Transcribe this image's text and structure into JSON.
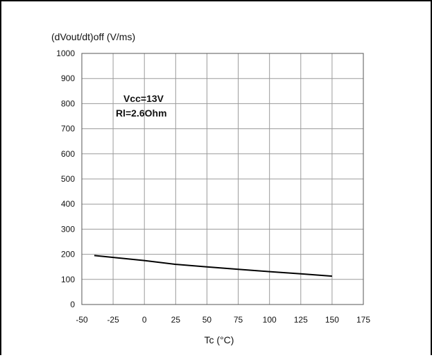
{
  "chart_data": {
    "type": "line",
    "ylabel": "(dVout/dt)off (V/ms)",
    "xlabel": "Tc (°C)",
    "xlim": [
      -50,
      175
    ],
    "ylim": [
      0,
      1000
    ],
    "x_ticks": [
      -50,
      -25,
      0,
      25,
      50,
      75,
      100,
      125,
      150,
      175
    ],
    "y_ticks": [
      0,
      100,
      200,
      300,
      400,
      500,
      600,
      700,
      800,
      900,
      1000
    ],
    "grid": true,
    "annotations": [
      "Vcc=13V",
      "Rl=2.6Ohm"
    ],
    "series": [
      {
        "color": "#000000",
        "x": [
          -40,
          0,
          25,
          50,
          75,
          100,
          125,
          150
        ],
        "y": [
          195,
          175,
          160,
          150,
          140,
          131,
          122,
          113
        ]
      }
    ]
  }
}
